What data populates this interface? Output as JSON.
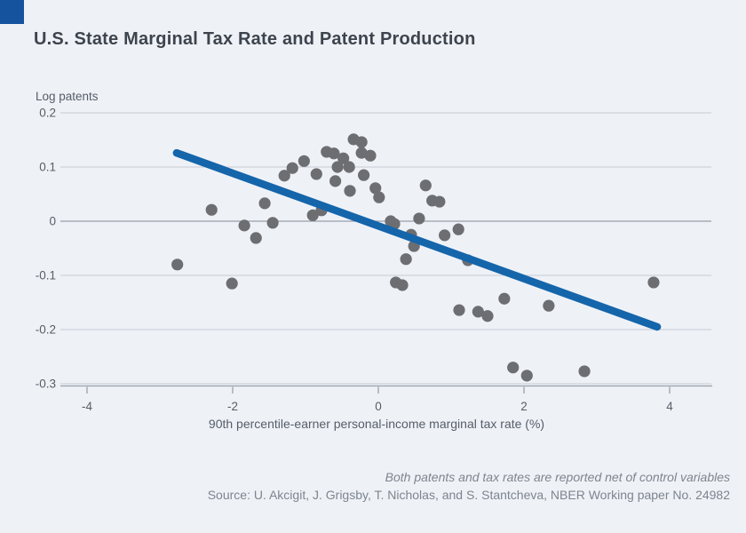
{
  "header": {
    "title": "U.S. State Marginal Tax Rate and Patent Production"
  },
  "chart_data": {
    "type": "scatter",
    "title": "U.S. State Marginal Tax Rate and Patent Production",
    "xlabel": "90th percentile-earner personal-income marginal tax rate (%)",
    "ylabel": "Log patents",
    "x_ticks": [
      -4,
      -2,
      0,
      2,
      4
    ],
    "y_ticks": [
      0.2,
      0.1,
      0,
      -0.1,
      -0.2,
      -0.3
    ],
    "xlim": [
      -4.4,
      4.6
    ],
    "ylim": [
      -0.3,
      0.23
    ],
    "grid": true,
    "legend": "none",
    "points": [
      [
        -2.76,
        -0.08
      ],
      [
        -2.29,
        0.021
      ],
      [
        -2.01,
        -0.115
      ],
      [
        -1.84,
        -0.008
      ],
      [
        -1.68,
        -0.031
      ],
      [
        -1.56,
        0.033
      ],
      [
        -1.45,
        -0.003
      ],
      [
        -1.29,
        0.084
      ],
      [
        -1.18,
        0.098
      ],
      [
        -1.02,
        0.111
      ],
      [
        -0.9,
        0.011
      ],
      [
        -0.85,
        0.087
      ],
      [
        -0.78,
        0.02
      ],
      [
        -0.71,
        0.128
      ],
      [
        -0.61,
        0.125
      ],
      [
        -0.59,
        0.074
      ],
      [
        -0.48,
        0.116
      ],
      [
        -0.56,
        0.1
      ],
      [
        -0.4,
        0.1
      ],
      [
        -0.39,
        0.056
      ],
      [
        -0.34,
        0.151
      ],
      [
        -0.23,
        0.146
      ],
      [
        -0.23,
        0.126
      ],
      [
        -0.11,
        0.121
      ],
      [
        -0.2,
        0.085
      ],
      [
        -0.04,
        0.061
      ],
      [
        0.01,
        0.044
      ],
      [
        0.17,
        0.0
      ],
      [
        0.22,
        -0.005
      ],
      [
        0.56,
        0.005
      ],
      [
        0.65,
        0.066
      ],
      [
        0.74,
        0.038
      ],
      [
        0.84,
        0.036
      ],
      [
        0.45,
        -0.025
      ],
      [
        0.49,
        -0.046
      ],
      [
        0.38,
        -0.07
      ],
      [
        0.24,
        -0.113
      ],
      [
        0.33,
        -0.118
      ],
      [
        0.91,
        -0.026
      ],
      [
        1.1,
        -0.015
      ],
      [
        1.23,
        -0.072
      ],
      [
        1.11,
        -0.164
      ],
      [
        1.37,
        -0.167
      ],
      [
        1.5,
        -0.175
      ],
      [
        1.73,
        -0.143
      ],
      [
        2.34,
        -0.156
      ],
      [
        3.78,
        -0.113
      ],
      [
        1.85,
        -0.27
      ],
      [
        2.04,
        -0.285
      ],
      [
        2.83,
        -0.277
      ]
    ],
    "trend_line": {
      "x1": -2.77,
      "y1": 0.126,
      "x2": 3.83,
      "y2": -0.195
    }
  },
  "footer": {
    "note": "Both patents and tax rates are reported net of control variables",
    "source": "Source: U. Akcigit, J. Grigsby, T. Nicholas, and S. Stantcheva, NBER Working paper No. 24982"
  },
  "colors": {
    "background": "#eef2f7",
    "title": "#3e444d",
    "dot": "#6d6e71",
    "trend_line": "#1565ab",
    "gridline": "#c5cbd3",
    "zero_line": "#99a0aa",
    "axis": "#99a0aa",
    "tick_label": "#575d67",
    "footer_text": "#7e848e",
    "brand": "#15539e"
  }
}
